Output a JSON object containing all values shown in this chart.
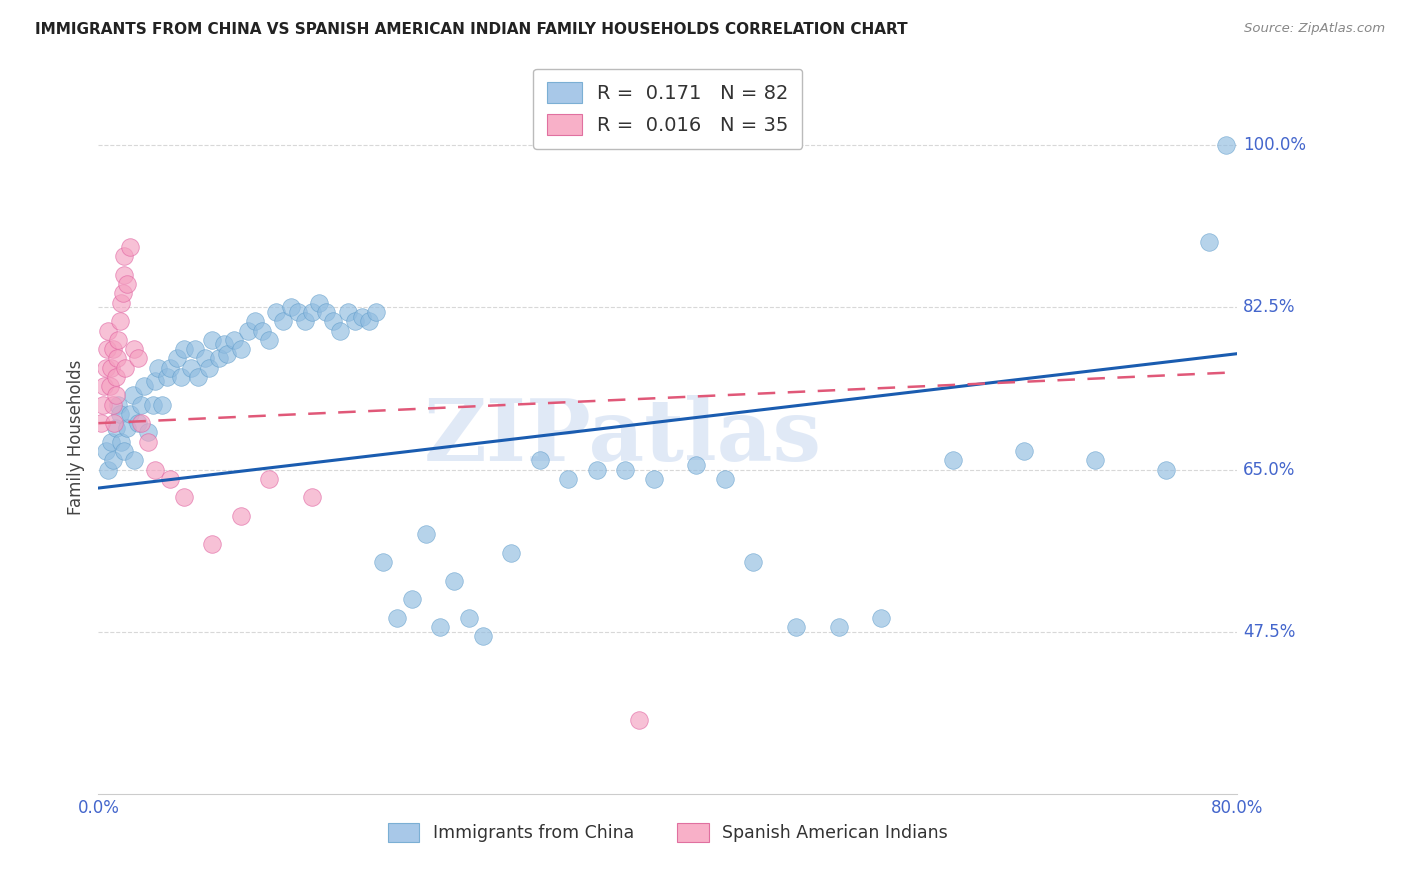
{
  "title": "IMMIGRANTS FROM CHINA VS SPANISH AMERICAN INDIAN FAMILY HOUSEHOLDS CORRELATION CHART",
  "source": "Source: ZipAtlas.com",
  "ylabel": "Family Households",
  "y_tick_labels": [
    "47.5%",
    "65.0%",
    "82.5%",
    "100.0%"
  ],
  "y_tick_values": [
    0.475,
    0.65,
    0.825,
    1.0
  ],
  "xlim": [
    0.0,
    0.8
  ],
  "ylim": [
    0.3,
    1.07
  ],
  "legend1_label": "Immigrants from China",
  "legend1_color": "#a8c8e8",
  "legend1_R": "0.171",
  "legend1_N": "82",
  "legend2_label": "Spanish American Indians",
  "legend2_color": "#f8b0c8",
  "legend2_R": "0.016",
  "legend2_N": "35",
  "blue_scatter_color": "#90bce0",
  "pink_scatter_color": "#f4a0c0",
  "blue_line_color": "#1a5cb0",
  "pink_line_color": "#e05878",
  "blue_line_start_y": 0.63,
  "blue_line_end_y": 0.775,
  "pink_line_start_y": 0.7,
  "pink_line_end_y": 0.755,
  "watermark_text": "ZIPatlas",
  "watermark_color": "#c8d8f0",
  "grid_color": "#d8d8d8",
  "axis_color": "#4466cc",
  "title_color": "#222222",
  "source_color": "#888888",
  "blue_x": [
    0.005,
    0.007,
    0.009,
    0.01,
    0.012,
    0.014,
    0.015,
    0.016,
    0.018,
    0.02,
    0.022,
    0.024,
    0.025,
    0.028,
    0.03,
    0.032,
    0.035,
    0.038,
    0.04,
    0.042,
    0.045,
    0.048,
    0.05,
    0.055,
    0.058,
    0.06,
    0.065,
    0.068,
    0.07,
    0.075,
    0.078,
    0.08,
    0.085,
    0.088,
    0.09,
    0.095,
    0.1,
    0.105,
    0.11,
    0.115,
    0.12,
    0.125,
    0.13,
    0.135,
    0.14,
    0.145,
    0.15,
    0.155,
    0.16,
    0.165,
    0.17,
    0.175,
    0.18,
    0.185,
    0.19,
    0.195,
    0.2,
    0.21,
    0.22,
    0.23,
    0.24,
    0.25,
    0.26,
    0.27,
    0.29,
    0.31,
    0.33,
    0.35,
    0.37,
    0.39,
    0.42,
    0.44,
    0.46,
    0.49,
    0.52,
    0.55,
    0.6,
    0.65,
    0.7,
    0.75,
    0.78,
    0.792
  ],
  "blue_y": [
    0.67,
    0.65,
    0.68,
    0.66,
    0.695,
    0.72,
    0.71,
    0.68,
    0.67,
    0.695,
    0.71,
    0.73,
    0.66,
    0.7,
    0.72,
    0.74,
    0.69,
    0.72,
    0.745,
    0.76,
    0.72,
    0.75,
    0.76,
    0.77,
    0.75,
    0.78,
    0.76,
    0.78,
    0.75,
    0.77,
    0.76,
    0.79,
    0.77,
    0.785,
    0.775,
    0.79,
    0.78,
    0.8,
    0.81,
    0.8,
    0.79,
    0.82,
    0.81,
    0.825,
    0.82,
    0.81,
    0.82,
    0.83,
    0.82,
    0.81,
    0.8,
    0.82,
    0.81,
    0.815,
    0.81,
    0.82,
    0.55,
    0.49,
    0.51,
    0.58,
    0.48,
    0.53,
    0.49,
    0.47,
    0.56,
    0.66,
    0.64,
    0.65,
    0.65,
    0.64,
    0.655,
    0.64,
    0.55,
    0.48,
    0.48,
    0.49,
    0.66,
    0.67,
    0.66,
    0.65,
    0.895,
    1.0
  ],
  "pink_x": [
    0.002,
    0.003,
    0.004,
    0.005,
    0.006,
    0.007,
    0.008,
    0.009,
    0.01,
    0.01,
    0.011,
    0.012,
    0.012,
    0.013,
    0.014,
    0.015,
    0.016,
    0.017,
    0.018,
    0.018,
    0.019,
    0.02,
    0.022,
    0.025,
    0.028,
    0.03,
    0.035,
    0.04,
    0.05,
    0.06,
    0.08,
    0.1,
    0.12,
    0.15,
    0.38
  ],
  "pink_y": [
    0.7,
    0.72,
    0.74,
    0.76,
    0.78,
    0.8,
    0.74,
    0.76,
    0.72,
    0.78,
    0.7,
    0.73,
    0.75,
    0.77,
    0.79,
    0.81,
    0.83,
    0.84,
    0.86,
    0.88,
    0.76,
    0.85,
    0.89,
    0.78,
    0.77,
    0.7,
    0.68,
    0.65,
    0.64,
    0.62,
    0.57,
    0.6,
    0.64,
    0.62,
    0.38
  ]
}
